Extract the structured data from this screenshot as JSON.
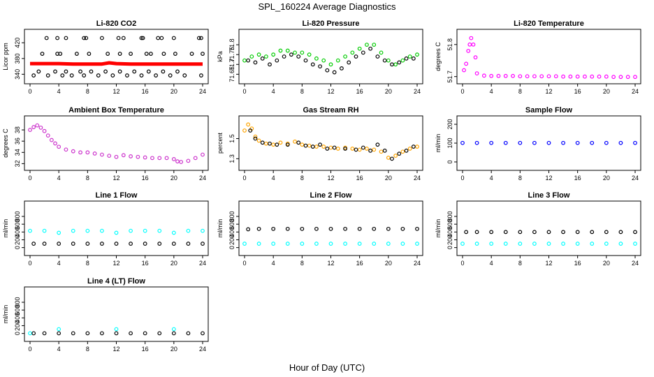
{
  "figure": {
    "title": "SPL_160224  Average Diagnostics",
    "xlabel": "Hour of Day (UTC)"
  },
  "chart_data": [
    {
      "type": "scatter",
      "title": "Li-820 CO2",
      "ylabel": "Licor ppm",
      "xlim": [
        0,
        24
      ],
      "ylim": [
        330,
        440
      ],
      "xticks": [
        0,
        4,
        8,
        12,
        16,
        20,
        24
      ],
      "yticks": [
        340,
        380,
        420
      ],
      "series": [
        {
          "name": "outliers-low",
          "color": "#000000",
          "marker": "circle",
          "x": [
            0.5,
            1.2,
            2.5,
            3.5,
            4.5,
            5.0,
            5.8,
            7.0,
            7.5,
            8.5,
            9.5,
            10.5,
            11.5,
            12.5,
            13.5,
            14.5,
            15.5,
            16.5,
            17.5,
            18.5,
            19.5,
            20.5,
            21.5,
            23.8
          ],
          "y": [
            337,
            347,
            337,
            347,
            337,
            347,
            337,
            347,
            337,
            347,
            337,
            347,
            337,
            347,
            337,
            347,
            337,
            347,
            337,
            347,
            337,
            347,
            337,
            337
          ]
        },
        {
          "name": "outliers-high",
          "color": "#000000",
          "marker": "circle",
          "x": [
            2.3,
            3.8,
            5.0,
            7.5,
            7.8,
            10.0,
            12.3,
            13.0,
            15.5,
            15.7,
            17.8,
            18.3,
            20.0,
            23.5,
            23.8
          ],
          "y": [
            432,
            432,
            432,
            432,
            432,
            432,
            432,
            432,
            432,
            432,
            432,
            432,
            432,
            432,
            432
          ]
        },
        {
          "name": "mid",
          "color": "#000000",
          "marker": "circle",
          "x": [
            1.7,
            3.8,
            4.2,
            6.5,
            8.2,
            10.8,
            12.5,
            14.0,
            16.2,
            16.8,
            18.6,
            20.2,
            22.5,
            24.0
          ],
          "y": [
            392,
            392,
            392,
            392,
            392,
            392,
            392,
            392,
            392,
            392,
            392,
            392,
            392,
            392
          ]
        },
        {
          "name": "co2",
          "color": "#ff0000",
          "marker": "line",
          "x": [
            0,
            2,
            4,
            6,
            8,
            10,
            11,
            12,
            14,
            16,
            18,
            20,
            22,
            24
          ],
          "y": [
            367,
            367,
            367,
            366,
            366,
            366,
            369,
            367,
            366,
            366,
            366,
            366,
            366,
            366
          ]
        }
      ]
    },
    {
      "type": "scatter",
      "title": "Li-820 Pressure",
      "ylabel": "kPa",
      "xlim": [
        0,
        24
      ],
      "ylim": [
        71.63,
        71.85
      ],
      "xticks": [
        0,
        4,
        8,
        12,
        16,
        20,
        24
      ],
      "yticks": [
        71.65,
        71.7,
        71.75,
        71.8
      ],
      "series": [
        {
          "name": "pressure",
          "color": "#00cc00",
          "marker": "circle",
          "x": [
            0,
            1,
            2,
            3,
            4,
            5,
            6,
            7,
            8,
            9,
            10,
            11,
            12,
            13,
            14,
            15,
            16,
            17,
            18,
            19,
            20,
            21,
            22,
            23,
            24
          ],
          "y": [
            71.72,
            71.74,
            71.75,
            71.74,
            71.75,
            71.77,
            71.77,
            71.76,
            71.76,
            71.75,
            71.73,
            71.72,
            71.7,
            71.72,
            71.74,
            71.76,
            71.78,
            71.8,
            71.8,
            71.76,
            71.72,
            71.7,
            71.72,
            71.74,
            71.75
          ]
        },
        {
          "name": "pressure-black",
          "color": "#000000",
          "marker": "circle",
          "x": [
            0.5,
            1.5,
            2.5,
            3.5,
            4.5,
            5.5,
            6.5,
            7.5,
            8.5,
            9.5,
            10.5,
            11.5,
            12.5,
            13.5,
            14.5,
            15.5,
            16.5,
            17.5,
            18.5,
            19.5,
            20.5,
            21.5,
            22.5,
            23.5
          ],
          "y": [
            71.72,
            71.71,
            71.73,
            71.7,
            71.72,
            71.74,
            71.75,
            71.74,
            71.72,
            71.7,
            71.69,
            71.67,
            71.66,
            71.68,
            71.71,
            71.74,
            71.76,
            71.78,
            71.74,
            71.72,
            71.7,
            71.71,
            71.73,
            71.73
          ]
        }
      ]
    },
    {
      "type": "scatter",
      "title": "Li-820 Temperature",
      "ylabel": "degrees C",
      "xlim": [
        0,
        24
      ],
      "ylim": [
        51.695,
        51.83
      ],
      "xticks": [
        0,
        4,
        8,
        12,
        16,
        20,
        24
      ],
      "yticks": [
        51.7,
        51.8
      ],
      "series": [
        {
          "name": "temp",
          "color": "#ff00ff",
          "marker": "circle",
          "x": [
            0.2,
            0.5,
            0.8,
            1.0,
            1.2,
            1.5,
            1.8,
            2.0,
            3,
            4,
            5,
            6,
            7,
            8,
            9,
            10,
            11,
            12,
            13,
            14,
            15,
            16,
            17,
            18,
            19,
            20,
            21,
            22,
            23,
            24
          ],
          "y": [
            51.72,
            51.74,
            51.78,
            51.8,
            51.82,
            51.8,
            51.76,
            51.71,
            51.703,
            51.702,
            51.702,
            51.702,
            51.702,
            51.701,
            51.701,
            51.701,
            51.701,
            51.701,
            51.701,
            51.7,
            51.7,
            51.7,
            51.7,
            51.7,
            51.7,
            51.7,
            51.699,
            51.699,
            51.699,
            51.699
          ]
        }
      ]
    },
    {
      "type": "scatter",
      "title": "Ambient Box Temperature",
      "ylabel": "degrees C",
      "xlim": [
        0,
        24
      ],
      "ylim": [
        31.8,
        39.5
      ],
      "xticks": [
        0,
        4,
        8,
        12,
        16,
        20,
        24
      ],
      "yticks": [
        32,
        34,
        36,
        38
      ],
      "series": [
        {
          "name": "box-temp",
          "color": "#cc33cc",
          "marker": "circle",
          "x": [
            0,
            0.5,
            1,
            1.5,
            2,
            2.5,
            3,
            3.5,
            4,
            5,
            6,
            7,
            8,
            9,
            10,
            11,
            12,
            13,
            14,
            15,
            16,
            17,
            18,
            19,
            20,
            20.5,
            21,
            22,
            23,
            24
          ],
          "y": [
            38.0,
            38.5,
            38.8,
            38.4,
            37.8,
            37.0,
            36.2,
            35.6,
            35.0,
            34.5,
            34.2,
            34.0,
            34.0,
            33.8,
            33.6,
            33.4,
            33.2,
            33.5,
            33.3,
            33.2,
            33.1,
            33.0,
            33.0,
            33.0,
            32.8,
            32.4,
            32.3,
            32.5,
            33.0,
            33.6
          ]
        }
      ]
    },
    {
      "type": "scatter",
      "title": "Gas Stream RH",
      "ylabel": "percent",
      "xlim": [
        0,
        24
      ],
      "ylim": [
        1.24,
        1.67
      ],
      "xticks": [
        0,
        4,
        8,
        12,
        16,
        20,
        24
      ],
      "yticks": [
        1.3,
        1.5
      ],
      "series": [
        {
          "name": "rh",
          "color": "#ffa500",
          "marker": "circle",
          "x": [
            0,
            0.5,
            1,
            1.5,
            2,
            3,
            4,
            5,
            6,
            7,
            8,
            9,
            10,
            11,
            12,
            13,
            14,
            15,
            16,
            17,
            18,
            19,
            20,
            21,
            22,
            23,
            24
          ],
          "y": [
            1.58,
            1.64,
            1.6,
            1.52,
            1.48,
            1.45,
            1.44,
            1.46,
            1.45,
            1.47,
            1.44,
            1.43,
            1.42,
            1.42,
            1.41,
            1.4,
            1.41,
            1.4,
            1.39,
            1.4,
            1.39,
            1.37,
            1.31,
            1.33,
            1.37,
            1.4,
            1.42
          ]
        },
        {
          "name": "rh-black",
          "color": "#000000",
          "marker": "circle",
          "x": [
            0.8,
            1.5,
            2.5,
            3.5,
            4.5,
            6.0,
            7.5,
            8.5,
            9.5,
            10.5,
            11.5,
            12.5,
            14.0,
            15.5,
            16.5,
            17.5,
            18.5,
            19.5,
            20.5,
            21.5,
            22.5,
            23.5
          ],
          "y": [
            1.58,
            1.5,
            1.46,
            1.45,
            1.44,
            1.44,
            1.46,
            1.43,
            1.42,
            1.44,
            1.4,
            1.41,
            1.4,
            1.39,
            1.41,
            1.38,
            1.44,
            1.38,
            1.3,
            1.35,
            1.38,
            1.42
          ]
        }
      ]
    },
    {
      "type": "scatter",
      "title": "Sample Flow",
      "ylabel": "ml/min",
      "xlim": [
        0,
        24
      ],
      "ylim": [
        -15,
        215
      ],
      "xticks": [
        0,
        4,
        8,
        12,
        16,
        20,
        24
      ],
      "yticks": [
        0,
        100,
        200
      ],
      "series": [
        {
          "name": "sample",
          "color": "#0000ff",
          "marker": "circle",
          "x": [
            0,
            2,
            4,
            6,
            8,
            10,
            12,
            14,
            16,
            18,
            20,
            22,
            24
          ],
          "y": [
            101,
            101,
            101,
            101,
            101,
            101,
            101,
            101,
            101,
            101,
            101,
            101,
            101
          ]
        }
      ]
    },
    {
      "type": "scatter",
      "title": "Line 1 Flow",
      "ylabel": "ml/min",
      "xlim": [
        0,
        24
      ],
      "ylim": [
        -60,
        1050
      ],
      "xticks": [
        0,
        4,
        8,
        12,
        16,
        20,
        24
      ],
      "yticks": [
        0,
        200,
        400,
        600,
        800
      ],
      "series": [
        {
          "name": "line1-cyan",
          "color": "#00ffff",
          "marker": "circle",
          "x": [
            0,
            2,
            4,
            6,
            8,
            10,
            12,
            14,
            16,
            18,
            20,
            22,
            24
          ],
          "y": [
            430,
            430,
            380,
            430,
            430,
            430,
            380,
            430,
            430,
            430,
            380,
            430,
            430
          ]
        },
        {
          "name": "line1-black",
          "color": "#000000",
          "marker": "circle",
          "x": [
            0.5,
            2,
            4,
            6,
            8,
            10,
            12,
            14,
            16,
            18,
            20,
            22,
            24
          ],
          "y": [
            100,
            100,
            100,
            100,
            100,
            100,
            100,
            100,
            100,
            100,
            100,
            100,
            100
          ]
        }
      ]
    },
    {
      "type": "scatter",
      "title": "Line 2 Flow",
      "ylabel": "ml/min",
      "xlim": [
        0,
        24
      ],
      "ylim": [
        -60,
        1050
      ],
      "xticks": [
        0,
        4,
        8,
        12,
        16,
        20,
        24
      ],
      "yticks": [
        0,
        200,
        400,
        600,
        800
      ],
      "series": [
        {
          "name": "line2-cyan",
          "color": "#00ffff",
          "marker": "circle",
          "x": [
            0,
            2,
            4,
            6,
            8,
            10,
            12,
            14,
            16,
            18,
            20,
            22,
            24
          ],
          "y": [
            100,
            100,
            100,
            100,
            100,
            100,
            100,
            100,
            100,
            100,
            100,
            100,
            100
          ]
        },
        {
          "name": "line2-black",
          "color": "#000000",
          "marker": "circle",
          "x": [
            0.5,
            2,
            4,
            6,
            8,
            10,
            12,
            14,
            16,
            18,
            20,
            22,
            24
          ],
          "y": [
            470,
            480,
            480,
            480,
            480,
            480,
            480,
            480,
            480,
            480,
            480,
            480,
            480
          ]
        }
      ]
    },
    {
      "type": "scatter",
      "title": "Line 3 Flow",
      "ylabel": "ml/min",
      "xlim": [
        0,
        24
      ],
      "ylim": [
        -60,
        1050
      ],
      "xticks": [
        0,
        4,
        8,
        12,
        16,
        20,
        24
      ],
      "yticks": [
        0,
        200,
        400,
        600,
        800
      ],
      "series": [
        {
          "name": "line3-cyan",
          "color": "#00ffff",
          "marker": "circle",
          "x": [
            0,
            2,
            4,
            6,
            8,
            10,
            12,
            14,
            16,
            18,
            20,
            22,
            24
          ],
          "y": [
            100,
            100,
            100,
            100,
            100,
            100,
            100,
            100,
            100,
            100,
            100,
            100,
            100
          ]
        },
        {
          "name": "line3-black",
          "color": "#000000",
          "marker": "circle",
          "x": [
            0.5,
            2,
            4,
            6,
            8,
            10,
            12,
            14,
            16,
            18,
            20,
            22,
            24
          ],
          "y": [
            400,
            400,
            400,
            400,
            400,
            400,
            400,
            400,
            400,
            400,
            400,
            400,
            400
          ]
        }
      ]
    },
    {
      "type": "scatter",
      "title": "Line 4 (LT) Flow",
      "ylabel": "ml/min",
      "xlim": [
        0,
        24
      ],
      "ylim": [
        -60,
        1050
      ],
      "xticks": [
        0,
        4,
        8,
        12,
        16,
        20,
        24
      ],
      "yticks": [
        0,
        200,
        400,
        600,
        800
      ],
      "series": [
        {
          "name": "line4-cyan",
          "color": "#00ffff",
          "marker": "circle",
          "x": [
            0,
            4,
            12,
            20
          ],
          "y": [
            5,
            110,
            110,
            110
          ]
        },
        {
          "name": "line4-black",
          "color": "#000000",
          "marker": "circle",
          "x": [
            0.5,
            2,
            4,
            6,
            8,
            10,
            12,
            14,
            16,
            18,
            20,
            22,
            24
          ],
          "y": [
            5,
            5,
            5,
            5,
            5,
            5,
            5,
            5,
            5,
            5,
            5,
            5,
            5
          ]
        }
      ]
    }
  ]
}
